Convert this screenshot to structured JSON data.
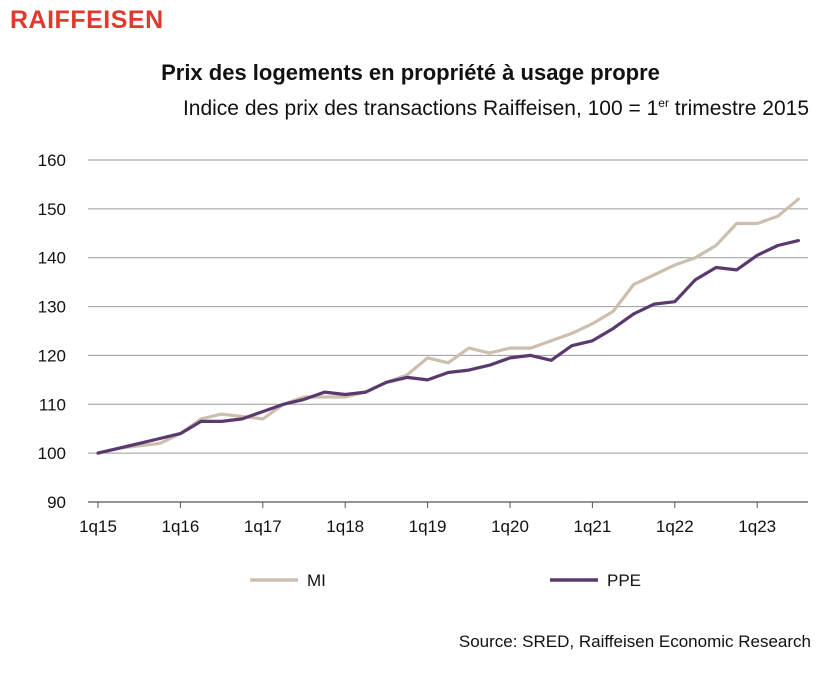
{
  "brand": "RAIFFEISEN",
  "chart_data": {
    "type": "line",
    "title": "Prix des logements en propriété à usage propre",
    "subtitle_main": "Indice des prix des transactions Raiffeisen, 100 = 1",
    "subtitle_sup": "er",
    "subtitle_end": " trimestre 2015",
    "xlabel": "",
    "ylabel": "",
    "ylim": [
      90,
      160
    ],
    "yticks": [
      90,
      100,
      110,
      120,
      130,
      140,
      150,
      160
    ],
    "x_tick_labels": [
      "1q15",
      "1q16",
      "1q17",
      "1q18",
      "1q19",
      "1q20",
      "1q21",
      "1q22",
      "1q23"
    ],
    "x": [
      "1q15",
      "2q15",
      "3q15",
      "4q15",
      "1q16",
      "2q16",
      "3q16",
      "4q16",
      "1q17",
      "2q17",
      "3q17",
      "4q17",
      "1q18",
      "2q18",
      "3q18",
      "4q18",
      "1q19",
      "2q19",
      "3q19",
      "4q19",
      "1q20",
      "2q20",
      "3q20",
      "4q20",
      "1q21",
      "2q21",
      "3q21",
      "4q21",
      "1q22",
      "2q22",
      "3q22",
      "4q22",
      "1q23",
      "2q23",
      "3q23"
    ],
    "grid": "horizontal",
    "legend_position": "bottom",
    "series": [
      {
        "name": "MI",
        "color": "#cdbfae",
        "values": [
          100,
          101,
          101.5,
          102,
          104,
          107,
          108,
          107.5,
          107,
          110,
          111.5,
          111.5,
          111.5,
          112.5,
          114.5,
          116,
          119.5,
          118.5,
          121.5,
          120.5,
          121.5,
          121.5,
          123,
          124.5,
          126.5,
          129,
          134.5,
          136.5,
          138.5,
          140,
          142.5,
          147,
          147,
          148.5,
          152
        ]
      },
      {
        "name": "PPE",
        "color": "#5a3a6e",
        "values": [
          100,
          101,
          102,
          103,
          104,
          106.5,
          106.5,
          107,
          108.5,
          110,
          111,
          112.5,
          112,
          112.5,
          114.5,
          115.5,
          115,
          116.5,
          117,
          118,
          119.5,
          120,
          119,
          122,
          123,
          125.5,
          128.5,
          130.5,
          131,
          135.5,
          138,
          137.5,
          140.5,
          142.5,
          143.5
        ]
      }
    ]
  },
  "source": "Source: SRED, Raiffeisen Economic Research"
}
